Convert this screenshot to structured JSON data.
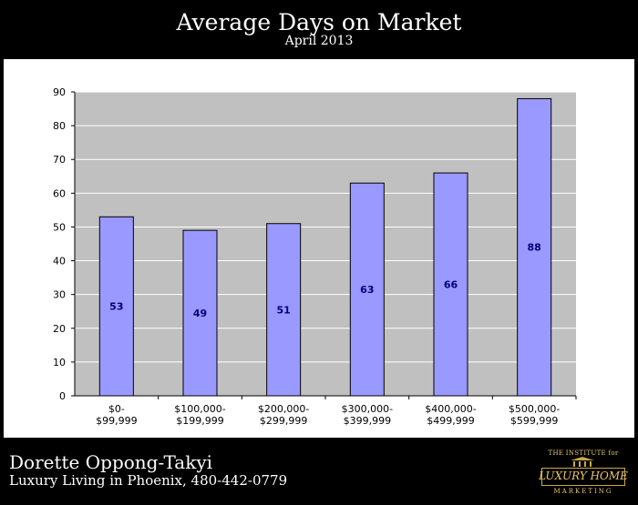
{
  "header": {
    "title": "Average Days on Market",
    "subtitle": "April 2013"
  },
  "footer": {
    "name": "Dorette Oppong-Takyi",
    "tagline": "Luxury Living in Phoenix, 480-442-0779",
    "logo": {
      "line1": "THE INSTITUTE for",
      "line2": "LUXURY HOME",
      "line3": "MARKETING"
    }
  },
  "colors": {
    "bar": "#9999ff",
    "plot_bg": "#c0c0c0",
    "label": "#000080",
    "background": "#000000"
  },
  "chart_data": {
    "type": "bar",
    "title": "Average Days on Market",
    "subtitle": "April 2013",
    "categories": [
      [
        "$0-",
        "$99,999"
      ],
      [
        "$100,000-",
        "$199,999"
      ],
      [
        "$200,000-",
        "$299,999"
      ],
      [
        "$300,000-",
        "$399,999"
      ],
      [
        "$400,000-",
        "$499,999"
      ],
      [
        "$500,000-",
        "$599,999"
      ]
    ],
    "values": [
      53,
      49,
      51,
      63,
      66,
      88
    ],
    "ylim": [
      0,
      90
    ],
    "yticks": [
      0,
      10,
      20,
      30,
      40,
      50,
      60,
      70,
      80,
      90
    ],
    "grid": true,
    "data_labels": true
  }
}
